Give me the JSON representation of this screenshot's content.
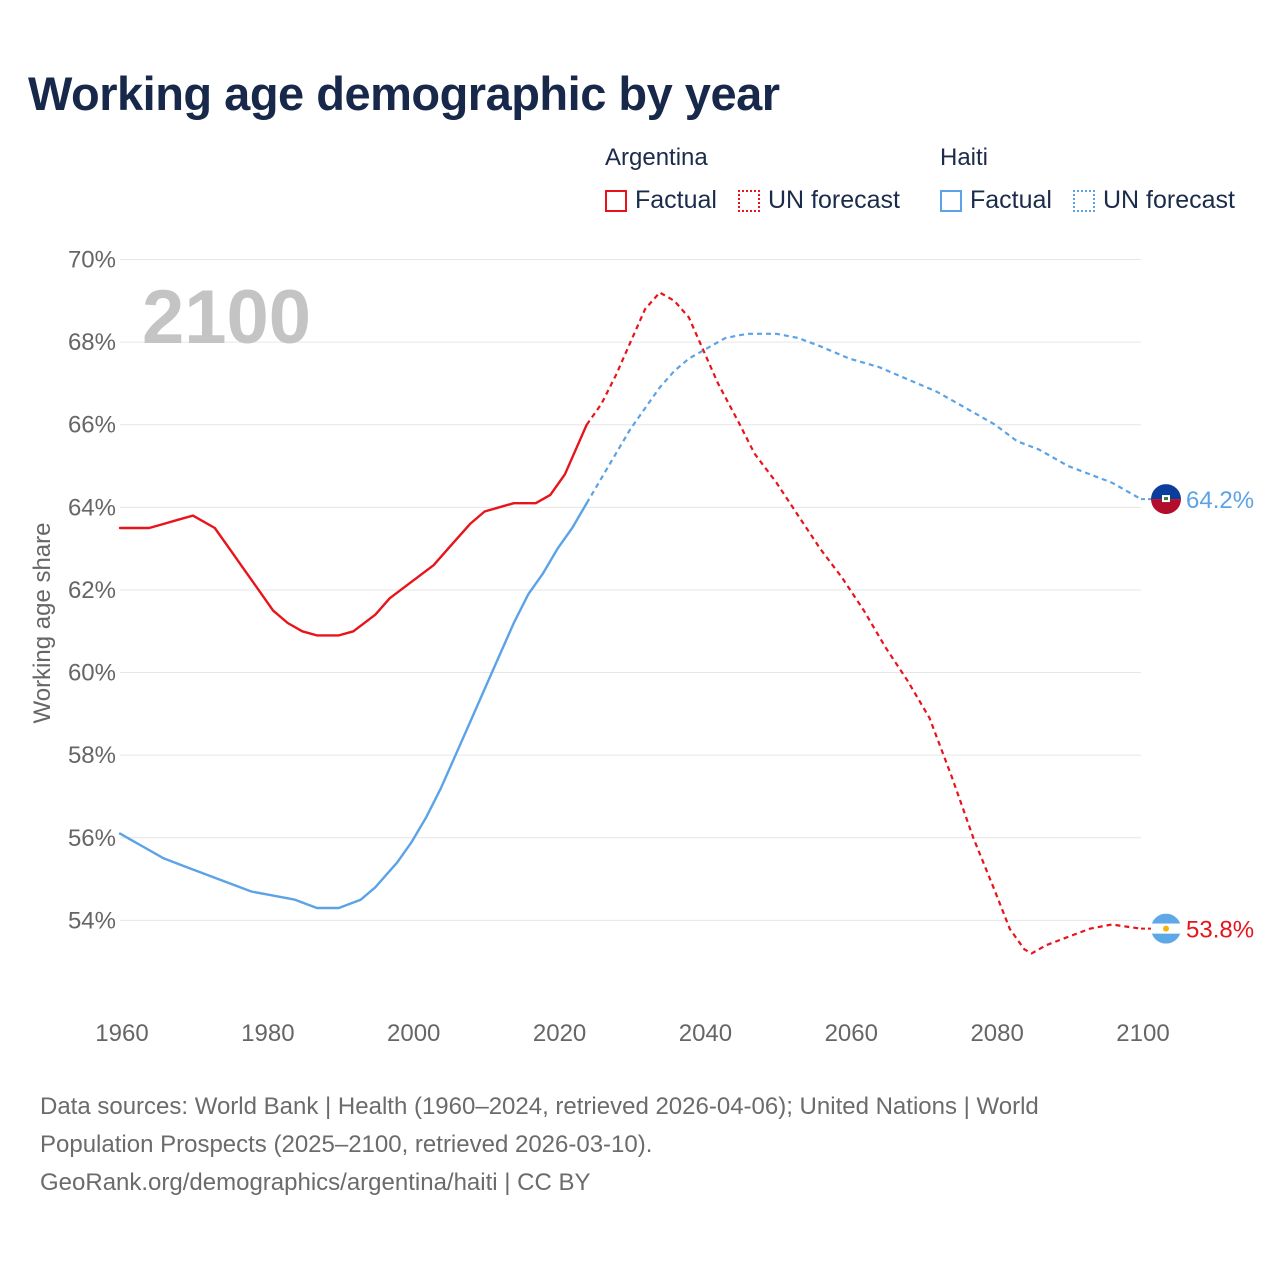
{
  "title": "Working age demographic by year",
  "legend": {
    "groups": [
      {
        "country": "Argentina",
        "color": "#e8141b",
        "factual_label": "Factual",
        "forecast_label": "UN forecast"
      },
      {
        "country": "Haiti",
        "color": "#5ba3e6",
        "factual_label": "Factual",
        "forecast_label": "UN forecast"
      }
    ]
  },
  "year_watermark": "2100",
  "end_labels": {
    "haiti": "64.2%",
    "argentina": "53.8%"
  },
  "footer": {
    "line1": "Data sources: World Bank | Health (1960–2024, retrieved 2026-04-06); United Nations | World",
    "line2": "Population Prospects (2025–2100, retrieved 2026-03-10).",
    "line3": "GeoRank.org/demographics/argentina/haiti | CC BY"
  },
  "chart_data": {
    "type": "line",
    "title": "Working age demographic by year",
    "xlabel": "",
    "ylabel": "Working age share",
    "xlim": [
      1960,
      2100
    ],
    "ylim": [
      52,
      70
    ],
    "x_ticks": [
      "1960",
      "1980",
      "2000",
      "2020",
      "2040",
      "2060",
      "2080",
      "2100"
    ],
    "y_ticks": [
      "54%",
      "56%",
      "58%",
      "60%",
      "62%",
      "64%",
      "66%",
      "68%",
      "70%"
    ],
    "grid": true,
    "forecast_start_year": 2024,
    "series": [
      {
        "name": "Argentina",
        "color": "#e8141b",
        "points": [
          [
            1960,
            63.5
          ],
          [
            1964,
            63.5
          ],
          [
            1966,
            63.6
          ],
          [
            1968,
            63.7
          ],
          [
            1970,
            63.8
          ],
          [
            1973,
            63.5
          ],
          [
            1975,
            63.0
          ],
          [
            1977,
            62.5
          ],
          [
            1979,
            62.0
          ],
          [
            1981,
            61.5
          ],
          [
            1983,
            61.2
          ],
          [
            1985,
            61.0
          ],
          [
            1987,
            60.9
          ],
          [
            1990,
            60.9
          ],
          [
            1992,
            61.0
          ],
          [
            1995,
            61.4
          ],
          [
            1997,
            61.8
          ],
          [
            2000,
            62.2
          ],
          [
            2003,
            62.6
          ],
          [
            2005,
            63.0
          ],
          [
            2008,
            63.6
          ],
          [
            2010,
            63.9
          ],
          [
            2012,
            64.0
          ],
          [
            2014,
            64.1
          ],
          [
            2017,
            64.1
          ],
          [
            2019,
            64.3
          ],
          [
            2021,
            64.8
          ],
          [
            2024,
            66.0
          ],
          [
            2026,
            66.5
          ],
          [
            2028,
            67.2
          ],
          [
            2030,
            68.0
          ],
          [
            2032,
            68.8
          ],
          [
            2034,
            69.2
          ],
          [
            2036,
            69.0
          ],
          [
            2038,
            68.6
          ],
          [
            2040,
            67.8
          ],
          [
            2042,
            67.0
          ],
          [
            2045,
            66.0
          ],
          [
            2047,
            65.3
          ],
          [
            2050,
            64.6
          ],
          [
            2053,
            63.8
          ],
          [
            2056,
            63.0
          ],
          [
            2059,
            62.3
          ],
          [
            2062,
            61.5
          ],
          [
            2065,
            60.6
          ],
          [
            2068,
            59.8
          ],
          [
            2071,
            58.9
          ],
          [
            2074,
            57.5
          ],
          [
            2077,
            56.0
          ],
          [
            2080,
            54.7
          ],
          [
            2082,
            53.8
          ],
          [
            2084,
            53.3
          ],
          [
            2085,
            53.2
          ],
          [
            2087,
            53.4
          ],
          [
            2090,
            53.6
          ],
          [
            2093,
            53.8
          ],
          [
            2096,
            53.9
          ],
          [
            2098,
            53.85
          ],
          [
            2100,
            53.8
          ]
        ]
      },
      {
        "name": "Haiti",
        "color": "#5ba3e6",
        "points": [
          [
            1960,
            56.1
          ],
          [
            1963,
            55.8
          ],
          [
            1966,
            55.5
          ],
          [
            1969,
            55.3
          ],
          [
            1972,
            55.1
          ],
          [
            1975,
            54.9
          ],
          [
            1978,
            54.7
          ],
          [
            1981,
            54.6
          ],
          [
            1984,
            54.5
          ],
          [
            1987,
            54.3
          ],
          [
            1990,
            54.3
          ],
          [
            1993,
            54.5
          ],
          [
            1995,
            54.8
          ],
          [
            1998,
            55.4
          ],
          [
            2000,
            55.9
          ],
          [
            2002,
            56.5
          ],
          [
            2004,
            57.2
          ],
          [
            2006,
            58.0
          ],
          [
            2008,
            58.8
          ],
          [
            2010,
            59.6
          ],
          [
            2012,
            60.4
          ],
          [
            2014,
            61.2
          ],
          [
            2016,
            61.9
          ],
          [
            2018,
            62.4
          ],
          [
            2020,
            63.0
          ],
          [
            2022,
            63.5
          ],
          [
            2024,
            64.1
          ],
          [
            2026,
            64.7
          ],
          [
            2028,
            65.3
          ],
          [
            2030,
            65.9
          ],
          [
            2032,
            66.4
          ],
          [
            2034,
            66.9
          ],
          [
            2036,
            67.3
          ],
          [
            2038,
            67.6
          ],
          [
            2040,
            67.8
          ],
          [
            2043,
            68.1
          ],
          [
            2046,
            68.2
          ],
          [
            2050,
            68.2
          ],
          [
            2053,
            68.1
          ],
          [
            2056,
            67.9
          ],
          [
            2060,
            67.6
          ],
          [
            2064,
            67.4
          ],
          [
            2068,
            67.1
          ],
          [
            2072,
            66.8
          ],
          [
            2076,
            66.4
          ],
          [
            2080,
            66.0
          ],
          [
            2083,
            65.6
          ],
          [
            2086,
            65.4
          ],
          [
            2090,
            65.0
          ],
          [
            2093,
            64.8
          ],
          [
            2096,
            64.6
          ],
          [
            2100,
            64.2
          ]
        ]
      }
    ]
  }
}
